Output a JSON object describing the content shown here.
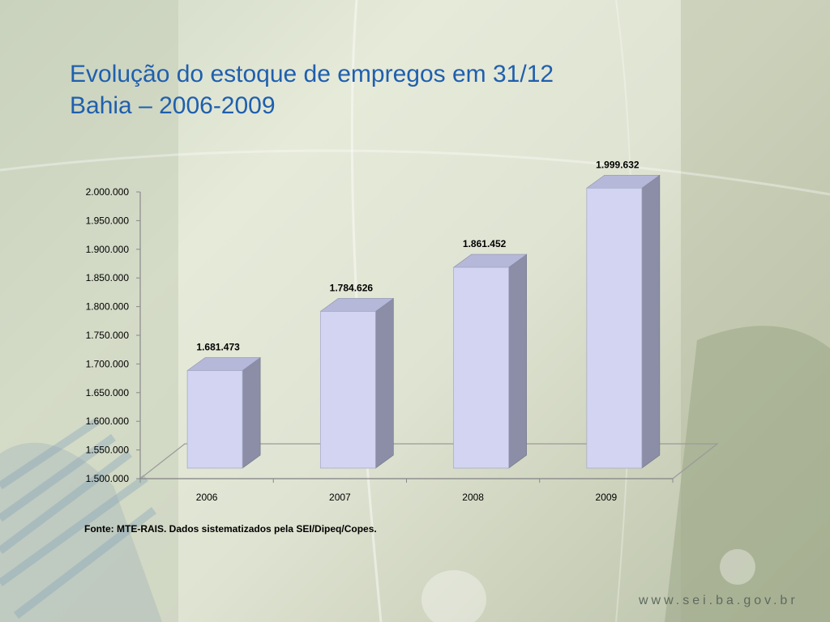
{
  "slide": {
    "title_line1": "Evolução do estoque de empregos em 31/12",
    "title_line2": "Bahia – 2006-2009",
    "source": "Fonte: MTE-RAIS. Dados sistematizados pela SEI/Dipeq/Copes.",
    "website": "www.sei.ba.gov.br"
  },
  "colors": {
    "bar_front": "#d2d4f2",
    "bar_side": "#8b8ea6",
    "bar_top": "#b5b8d8",
    "title": "#1f5fae"
  },
  "chart_data": {
    "type": "bar",
    "title": "",
    "xlabel": "",
    "ylabel": "",
    "categories": [
      "2006",
      "2007",
      "2008",
      "2009"
    ],
    "values": [
      1681473,
      1784626,
      1861452,
      1999632
    ],
    "data_labels": [
      "1.681.473",
      "1.784.626",
      "1.861.452",
      "1.999.632"
    ],
    "ylim": [
      1500000,
      2000000
    ],
    "yticks": [
      1500000,
      1550000,
      1600000,
      1650000,
      1700000,
      1750000,
      1800000,
      1850000,
      1900000,
      1950000,
      2000000
    ],
    "ytick_labels": [
      "1.500.000",
      "1.550.000",
      "1.600.000",
      "1.650.000",
      "1.700.000",
      "1.750.000",
      "1.800.000",
      "1.850.000",
      "1.900.000",
      "1.950.000",
      "2.000.000"
    ],
    "grid": false,
    "legend": "none",
    "style": "3d"
  }
}
